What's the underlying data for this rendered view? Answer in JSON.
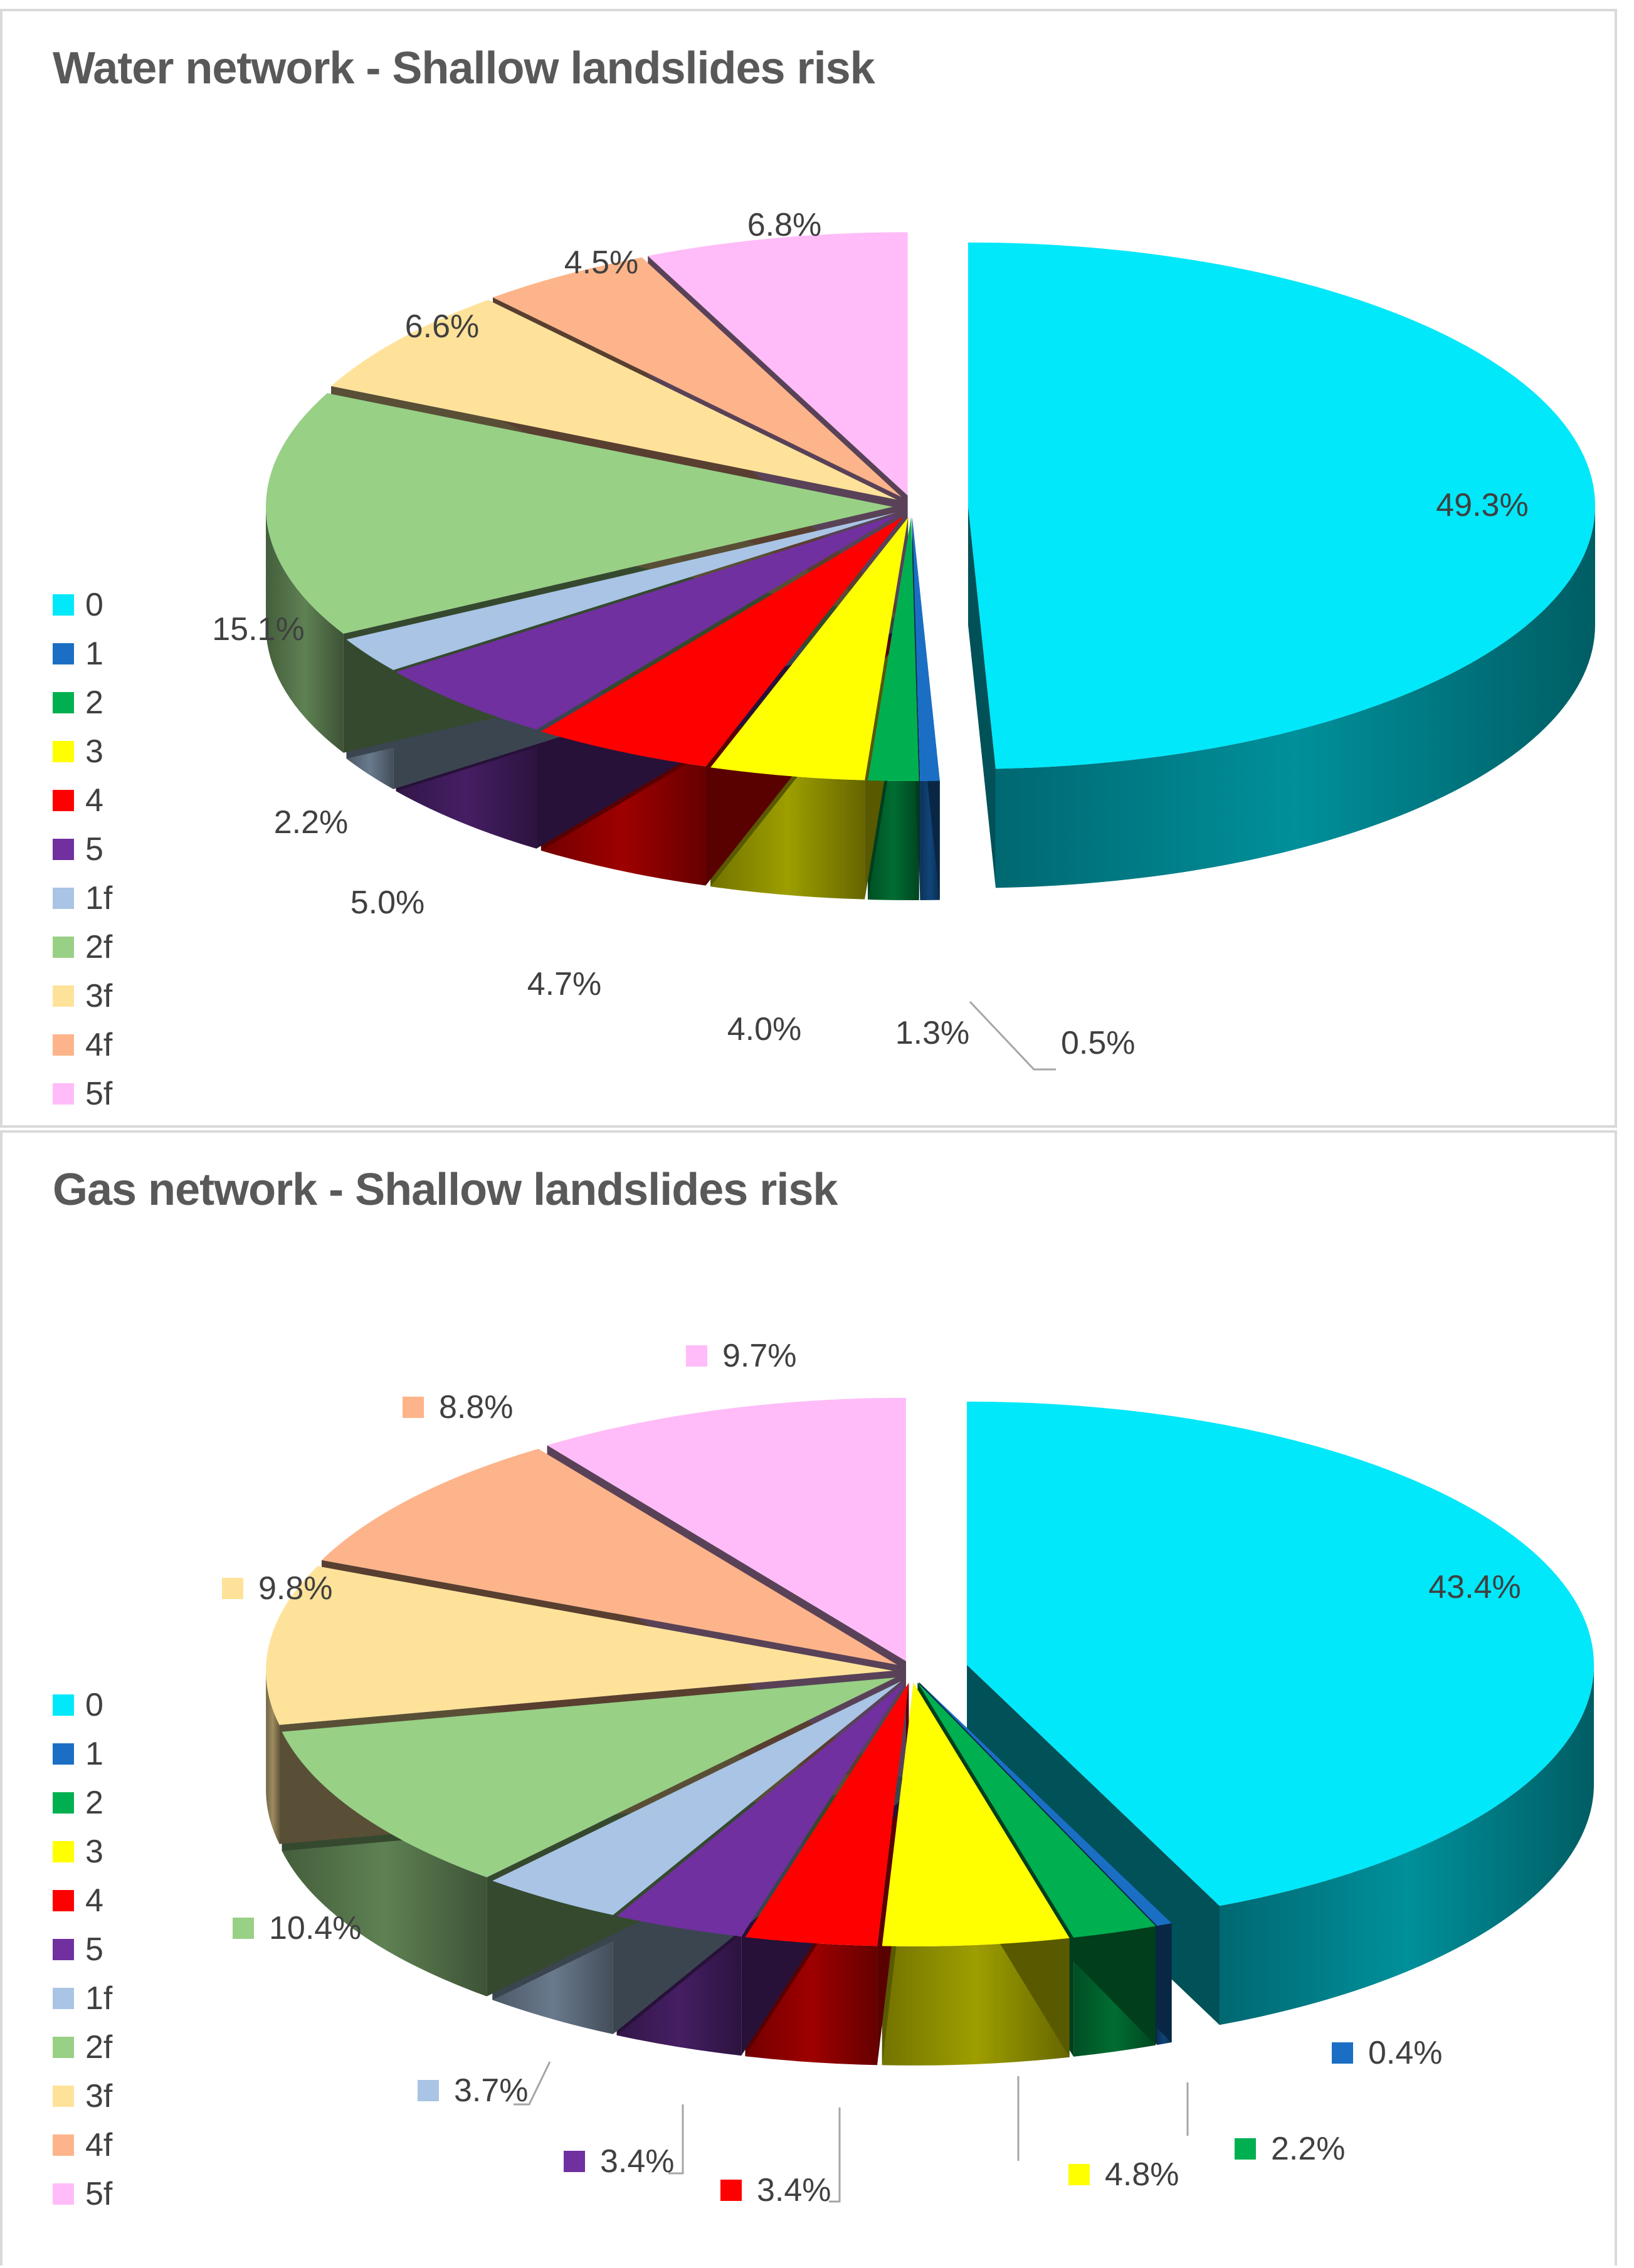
{
  "chart_data": [
    {
      "type": "pie",
      "title": "Water network - Shallow landslides risk",
      "categories": [
        "0",
        "1",
        "2",
        "3",
        "4",
        "5",
        "1f",
        "2f",
        "3f",
        "4f",
        "5f"
      ],
      "values": [
        49.3,
        0.5,
        1.3,
        4.0,
        4.7,
        5.0,
        2.2,
        15.1,
        6.6,
        4.5,
        6.8
      ],
      "labels": [
        "49.3%",
        "0.5%",
        "1.3%",
        "4.0%",
        "4.7%",
        "5.0%",
        "2.2%",
        "15.1%",
        "6.6%",
        "4.5%",
        "6.8%"
      ],
      "legend_position": "left"
    },
    {
      "type": "pie",
      "title": "Gas network - Shallow landslides risk",
      "categories": [
        "0",
        "1",
        "2",
        "3",
        "4",
        "5",
        "1f",
        "2f",
        "3f",
        "4f",
        "5f"
      ],
      "values": [
        43.4,
        0.4,
        2.2,
        4.8,
        3.4,
        3.4,
        3.7,
        10.4,
        9.8,
        8.8,
        9.7
      ],
      "labels": [
        "43.4%",
        "0.4%",
        "2.2%",
        "4.8%",
        "3.4%",
        "3.4%",
        "3.7%",
        "10.4%",
        "9.8%",
        "8.8%",
        "9.7%"
      ],
      "legend_position": "left"
    }
  ],
  "colors": [
    "#00e8fa",
    "#1a6fc4",
    "#00b050",
    "#ffff00",
    "#ff0000",
    "#7030a0",
    "#a9c4e4",
    "#98d086",
    "#ffe29a",
    "#fdb48a",
    "#ffbcf8"
  ]
}
